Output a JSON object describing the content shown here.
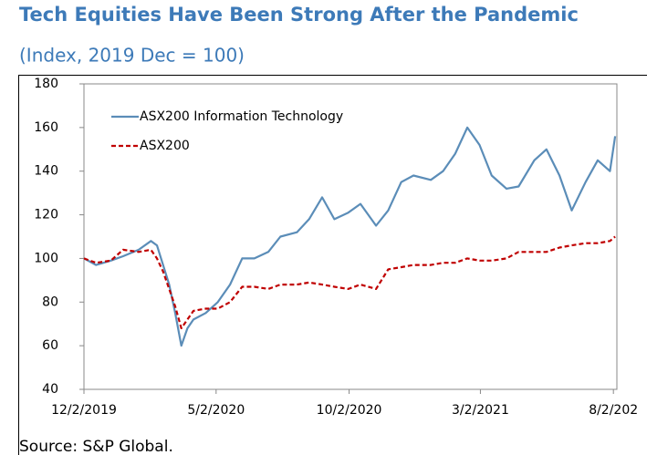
{
  "chart_data": {
    "type": "line",
    "title": "Tech Equities Have Been Strong After the Pandemic",
    "subtitle": "(Index, 2019 Dec = 100)",
    "source": "Source: S&P Global.",
    "x": [
      "2019-12-02",
      "2019-12-16",
      "2020-01-02",
      "2020-01-16",
      "2020-02-03",
      "2020-02-17",
      "2020-02-24",
      "2020-03-02",
      "2020-03-09",
      "2020-03-16",
      "2020-03-23",
      "2020-03-30",
      "2020-04-06",
      "2020-04-20",
      "2020-05-04",
      "2020-05-18",
      "2020-06-01",
      "2020-06-15",
      "2020-07-01",
      "2020-07-15",
      "2020-08-03",
      "2020-08-17",
      "2020-09-01",
      "2020-09-15",
      "2020-10-01",
      "2020-10-15",
      "2020-11-02",
      "2020-11-16",
      "2020-12-01",
      "2020-12-15",
      "2021-01-04",
      "2021-01-18",
      "2021-02-01",
      "2021-02-15",
      "2021-03-01",
      "2021-03-15",
      "2021-04-01",
      "2021-04-15",
      "2021-05-03",
      "2021-05-17",
      "2021-06-01",
      "2021-06-15",
      "2021-07-01",
      "2021-07-15",
      "2021-07-29",
      "2021-08-04"
    ],
    "series": [
      {
        "name": "ASX200 Information Technology",
        "color": "#5b8db8",
        "linestyle": "solid",
        "values": [
          100,
          97,
          99,
          101,
          104,
          108,
          106,
          97,
          88,
          75,
          60,
          68,
          72,
          75,
          80,
          88,
          100,
          100,
          103,
          110,
          112,
          118,
          128,
          118,
          121,
          125,
          115,
          122,
          135,
          138,
          136,
          140,
          148,
          160,
          152,
          138,
          132,
          133,
          145,
          150,
          138,
          122,
          135,
          145,
          140,
          156
        ]
      },
      {
        "name": "ASX200",
        "color": "#c00000",
        "linestyle": "dashed",
        "values": [
          100,
          98,
          99,
          104,
          103,
          104,
          100,
          94,
          86,
          78,
          68,
          72,
          76,
          77,
          77,
          80,
          87,
          87,
          86,
          88,
          88,
          89,
          88,
          87,
          86,
          88,
          86,
          95,
          96,
          97,
          97,
          98,
          98,
          100,
          99,
          99,
          100,
          103,
          103,
          103,
          105,
          106,
          107,
          107,
          108,
          110
        ]
      }
    ],
    "xlim": [
      "2019-12-02",
      "2021-08-06"
    ],
    "xticks": [
      {
        "value": "2019-12-02",
        "label": "12/2/2019"
      },
      {
        "value": "2020-05-02",
        "label": "5/2/2020"
      },
      {
        "value": "2020-10-02",
        "label": "10/2/2020"
      },
      {
        "value": "2021-03-02",
        "label": "3/2/2021"
      },
      {
        "value": "2021-08-02",
        "label": "8/2/202"
      }
    ],
    "ylim": [
      40,
      180
    ],
    "yticks": [
      40,
      60,
      80,
      100,
      120,
      140,
      160,
      180
    ],
    "legend": "upper left",
    "grid": false
  }
}
